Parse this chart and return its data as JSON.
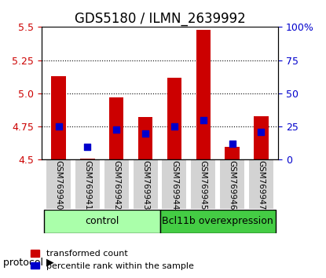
{
  "title": "GDS5180 / ILMN_2639992",
  "samples": [
    "GSM769940",
    "GSM769941",
    "GSM769942",
    "GSM769943",
    "GSM769944",
    "GSM769945",
    "GSM769946",
    "GSM769947"
  ],
  "red_values": [
    5.13,
    4.51,
    4.97,
    4.82,
    5.12,
    5.48,
    4.6,
    4.83
  ],
  "blue_values": [
    25,
    10,
    23,
    20,
    25,
    30,
    12,
    21
  ],
  "ylim_left": [
    4.5,
    5.5
  ],
  "ylim_right": [
    0,
    100
  ],
  "yticks_left": [
    4.5,
    4.75,
    5.0,
    5.25,
    5.5
  ],
  "yticks_right": [
    0,
    25,
    50,
    75,
    100
  ],
  "ytick_labels_right": [
    "0",
    "25",
    "50",
    "75",
    "100%"
  ],
  "grid_lines": [
    4.75,
    5.0,
    5.25
  ],
  "bar_color": "#cc0000",
  "bar_bottom": 4.5,
  "blue_color": "#0000cc",
  "bar_width": 0.5,
  "group1_label": "control",
  "group2_label": "Bcl11b overexpression",
  "group1_indices": [
    0,
    1,
    2,
    3
  ],
  "group2_indices": [
    4,
    5,
    6,
    7
  ],
  "group1_color": "#aaffaa",
  "group2_color": "#44cc44",
  "protocol_label": "protocol",
  "legend1_label": "transformed count",
  "legend2_label": "percentile rank within the sample",
  "ax_bg": "#f0f0f0",
  "plot_bg": "#ffffff",
  "title_fontsize": 12,
  "tick_label_color_left": "#cc0000",
  "tick_label_color_right": "#0000cc"
}
